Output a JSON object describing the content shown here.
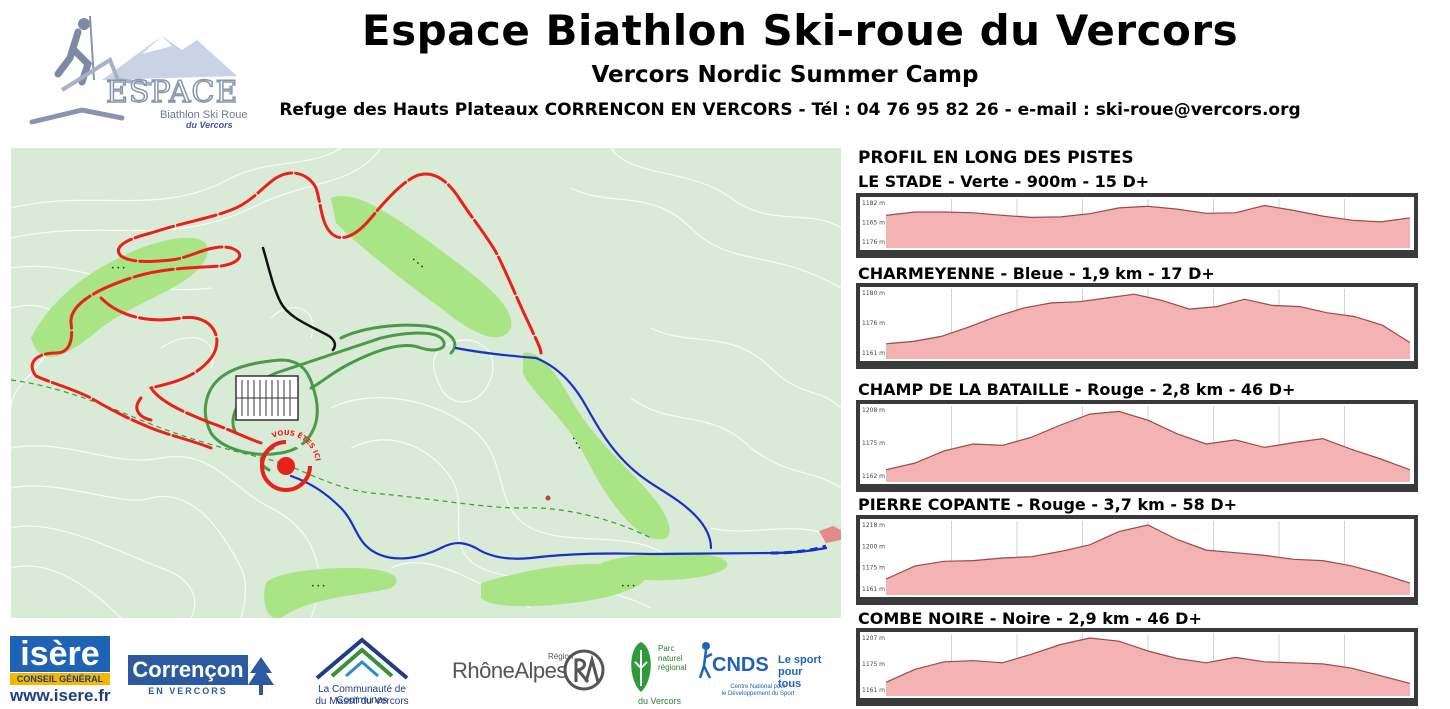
{
  "header": {
    "title": "Espace Biathlon Ski-roue du Vercors",
    "subtitle": "Vercors Nordic Summer Camp",
    "contact": "Refuge des Hauts Plateaux CORRENCON EN VERCORS - Tél : 04 76 95 82 26 - e-mail : ski-roue@vercors.org"
  },
  "logo": {
    "line1": "ESPACE",
    "line2": "Biathlon Ski Roue",
    "line3": "du Vercors"
  },
  "map": {
    "you_are_here": "VOUS ÊTES ICI",
    "colors": {
      "background": "#d9ead7",
      "meadow": "#a9e584",
      "red_trail": "#e8221b",
      "blue_trail": "#1a2fc8",
      "black_trail": "#111111",
      "green_trail": "#4a9a48",
      "dashed_path": "#3e9a3a"
    }
  },
  "profiles": {
    "section_title": "PROFIL EN LONG DES PISTES",
    "tracks": [
      {
        "title": "LE STADE - Verte - 900m - 15 D+",
        "y_labels": [
          "1182 m",
          "1165 m",
          "1176 m"
        ],
        "elev": [
          0.3,
          0.22,
          0.22,
          0.24,
          0.3,
          0.35,
          0.34,
          0.26,
          0.12,
          0.08,
          0.15,
          0.25,
          0.24,
          0.06,
          0.18,
          0.32,
          0.42,
          0.46,
          0.36
        ]
      },
      {
        "title": "CHARMEYENNE - Bleue - 1,9 km - 17 D+",
        "y_labels": [
          "1180 m",
          "1176 m",
          "1161 m"
        ],
        "elev": [
          0.82,
          0.78,
          0.7,
          0.55,
          0.38,
          0.24,
          0.16,
          0.14,
          0.08,
          0.02,
          0.12,
          0.26,
          0.22,
          0.1,
          0.2,
          0.22,
          0.32,
          0.38,
          0.52,
          0.8
        ]
      },
      {
        "title": "CHAMP DE LA BATAILLE - Rouge - 2,8 km - 46 D+",
        "y_labels": [
          "1208 m",
          "1175 m",
          "1162 m"
        ],
        "elev": [
          0.88,
          0.78,
          0.6,
          0.5,
          0.52,
          0.4,
          0.22,
          0.06,
          0.02,
          0.15,
          0.35,
          0.5,
          0.44,
          0.55,
          0.48,
          0.42,
          0.58,
          0.72,
          0.88
        ]
      },
      {
        "title": "PIERRE COPANTE - Rouge - 3,7 km - 58 D+",
        "y_labels": [
          "1218 m",
          "1200 m",
          "1175 m",
          "1161 m"
        ],
        "elev": [
          0.82,
          0.62,
          0.55,
          0.54,
          0.5,
          0.48,
          0.4,
          0.3,
          0.1,
          0.0,
          0.22,
          0.38,
          0.42,
          0.46,
          0.52,
          0.54,
          0.62,
          0.74,
          0.88
        ]
      },
      {
        "title": "COMBE NOIRE - Noire - 2,9 km - 46 D+",
        "y_labels": [
          "1207 m",
          "1175 m",
          "1161 m"
        ],
        "elev": [
          0.82,
          0.58,
          0.44,
          0.42,
          0.46,
          0.3,
          0.12,
          0.0,
          0.06,
          0.24,
          0.38,
          0.46,
          0.36,
          0.44,
          0.46,
          0.48,
          0.56,
          0.7,
          0.84
        ]
      }
    ]
  },
  "sponsors": {
    "isere": {
      "name": "isère",
      "sub": "CONSEIL GÉNÉRAL",
      "url": "www.isere.fr"
    },
    "correncon": {
      "name": "Corrençon",
      "sub": "EN VERCORS"
    },
    "cc": {
      "line1": "La Communauté de Communes",
      "line2": "du Massif du Vercors"
    },
    "rhone": {
      "name": "RhôneAlpes",
      "region": "Région"
    },
    "pnr": {
      "line1": "Parc",
      "line2": "naturel",
      "line3": "régional",
      "name": "du Vercors"
    },
    "cnds": {
      "name": "CNDS",
      "slogan1": "Le sport",
      "slogan2": "pour tous",
      "sub1": "Centre National pour",
      "sub2": "le Développement du Sport"
    }
  }
}
